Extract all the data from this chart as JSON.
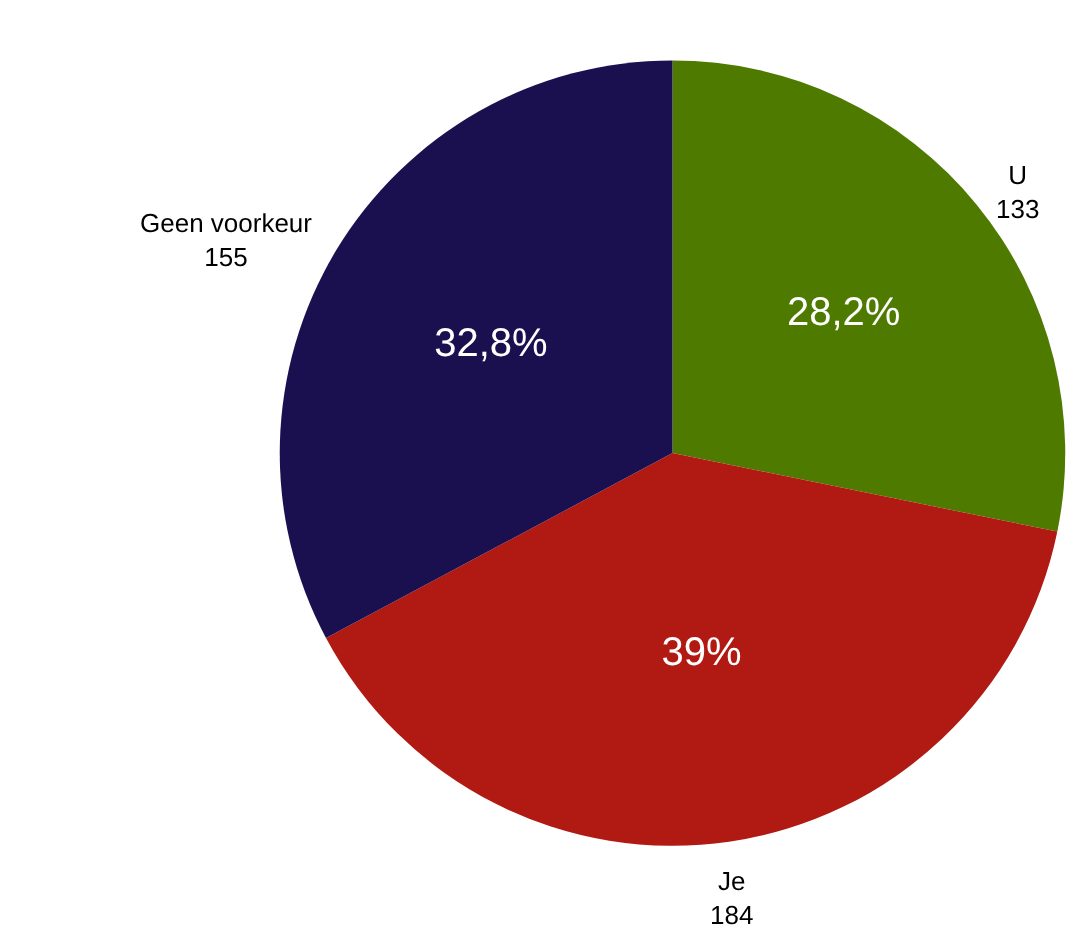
{
  "chart_data": {
    "type": "pie",
    "categories": [
      "U",
      "Je",
      "Geen voorkeur"
    ],
    "values": [
      28.2,
      39,
      32.8
    ],
    "annotations": [
      "133",
      "184",
      "155"
    ],
    "colors": [
      "#4e7a00",
      "#b11a13",
      "#1a1050"
    ],
    "value_labels": [
      "28,2%",
      "39%",
      "32,8%"
    ],
    "legend": false
  }
}
